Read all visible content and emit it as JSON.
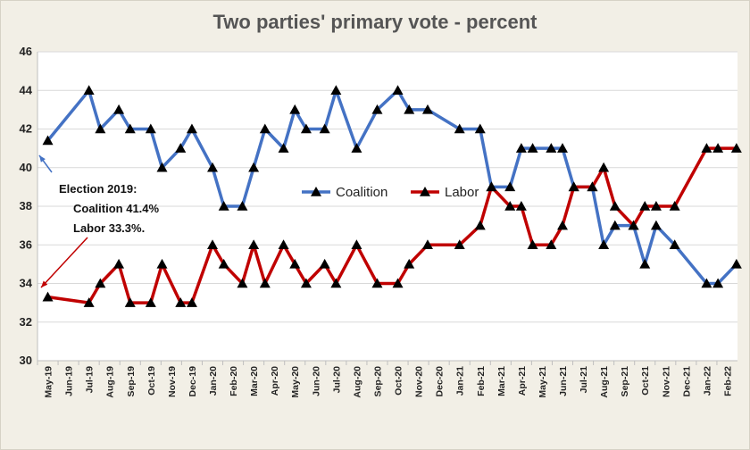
{
  "chart_data": {
    "type": "line",
    "title": "Two parties' primary vote - percent",
    "xlabel": "",
    "ylabel": "",
    "ylim": [
      30,
      46
    ],
    "yticks": [
      30,
      32,
      34,
      36,
      38,
      40,
      42,
      44,
      46
    ],
    "grid": "horizontal",
    "legend_position": "center-right",
    "month_labels": [
      "May-19",
      "Jun-19",
      "Jul-19",
      "Aug-19",
      "Sep-19",
      "Oct-19",
      "Nov-19",
      "Dec-19",
      "Jan-20",
      "Feb-20",
      "Mar-20",
      "Apr-20",
      "May-20",
      "Jun-20",
      "Jul-20",
      "Aug-20",
      "Sep-20",
      "Oct-20",
      "Nov-20",
      "Dec-20",
      "Jan-21",
      "Feb-21",
      "Mar-21",
      "Apr-21",
      "May-21",
      "Jun-21",
      "Jul-21",
      "Aug-21",
      "Sep-21",
      "Oct-21",
      "Nov-21",
      "Dec-21",
      "Jan-22",
      "Feb-22"
    ],
    "series": [
      {
        "name": "Coalition",
        "color": "#4472c4",
        "points": [
          [
            "May-19",
            41.4
          ],
          [
            "Jul-19",
            44
          ],
          [
            "Aug-19",
            42
          ],
          [
            "Aug-19",
            43
          ],
          [
            "Sep-19",
            42
          ],
          [
            "Oct-19",
            42
          ],
          [
            "Nov-19",
            40
          ],
          [
            "Nov-19",
            41
          ],
          [
            "Dec-19",
            42
          ],
          [
            "Jan-20",
            40
          ],
          [
            "Feb-20",
            38
          ],
          [
            "Feb-20",
            38
          ],
          [
            "Mar-20",
            40
          ],
          [
            "Apr-20",
            42
          ],
          [
            "Apr-20",
            41
          ],
          [
            "May-20",
            43
          ],
          [
            "Jun-20",
            42
          ],
          [
            "Jun-20",
            42
          ],
          [
            "Jul-20",
            44
          ],
          [
            "Aug-20",
            41
          ],
          [
            "Sep-20",
            43
          ],
          [
            "Oct-20",
            44
          ],
          [
            "Nov-20",
            43
          ],
          [
            "Nov-20",
            43
          ],
          [
            "Jan-21",
            42
          ],
          [
            "Feb-21",
            42
          ],
          [
            "Mar-21",
            39
          ],
          [
            "Mar-21",
            39
          ],
          [
            "Apr-21",
            41
          ],
          [
            "May-21",
            41
          ],
          [
            "May-21",
            41
          ],
          [
            "Jun-21",
            41
          ],
          [
            "Jul-21",
            39
          ],
          [
            "Jul-21",
            39
          ],
          [
            "Aug-21",
            36
          ],
          [
            "Sep-21",
            37
          ],
          [
            "Sep-21",
            37
          ],
          [
            "Oct-21",
            35
          ],
          [
            "Nov-21",
            37
          ],
          [
            "Nov-21",
            36
          ],
          [
            "Jan-22",
            34
          ],
          [
            "Feb-22",
            34
          ],
          [
            "Feb-22",
            35
          ]
        ]
      },
      {
        "name": "Labor",
        "color": "#c00000",
        "points": [
          [
            "May-19",
            33.3
          ],
          [
            "Jul-19",
            33
          ],
          [
            "Aug-19",
            34
          ],
          [
            "Aug-19",
            35
          ],
          [
            "Sep-19",
            33
          ],
          [
            "Oct-19",
            33
          ],
          [
            "Nov-19",
            35
          ],
          [
            "Nov-19",
            33
          ],
          [
            "Dec-19",
            33
          ],
          [
            "Jan-20",
            36
          ],
          [
            "Feb-20",
            35
          ],
          [
            "Feb-20",
            34
          ],
          [
            "Mar-20",
            36
          ],
          [
            "Apr-20",
            34
          ],
          [
            "Apr-20",
            36
          ],
          [
            "May-20",
            35
          ],
          [
            "Jun-20",
            34
          ],
          [
            "Jun-20",
            35
          ],
          [
            "Jul-20",
            34
          ],
          [
            "Aug-20",
            36
          ],
          [
            "Sep-20",
            34
          ],
          [
            "Oct-20",
            34
          ],
          [
            "Nov-20",
            35
          ],
          [
            "Nov-20",
            36
          ],
          [
            "Jan-21",
            36
          ],
          [
            "Feb-21",
            37
          ],
          [
            "Mar-21",
            39
          ],
          [
            "Mar-21",
            38
          ],
          [
            "Apr-21",
            38
          ],
          [
            "May-21",
            36
          ],
          [
            "May-21",
            36
          ],
          [
            "Jun-21",
            37
          ],
          [
            "Jul-21",
            39
          ],
          [
            "Jul-21",
            39
          ],
          [
            "Aug-21",
            40
          ],
          [
            "Sep-21",
            38
          ],
          [
            "Sep-21",
            37
          ],
          [
            "Oct-21",
            38
          ],
          [
            "Nov-21",
            38
          ],
          [
            "Nov-21",
            38
          ],
          [
            "Jan-22",
            41
          ],
          [
            "Feb-22",
            41
          ],
          [
            "Feb-22",
            41
          ]
        ]
      }
    ],
    "annotation": {
      "lines": [
        "Election 2019:",
        "Coalition  41.4%",
        "Labor 33.3%."
      ]
    }
  }
}
